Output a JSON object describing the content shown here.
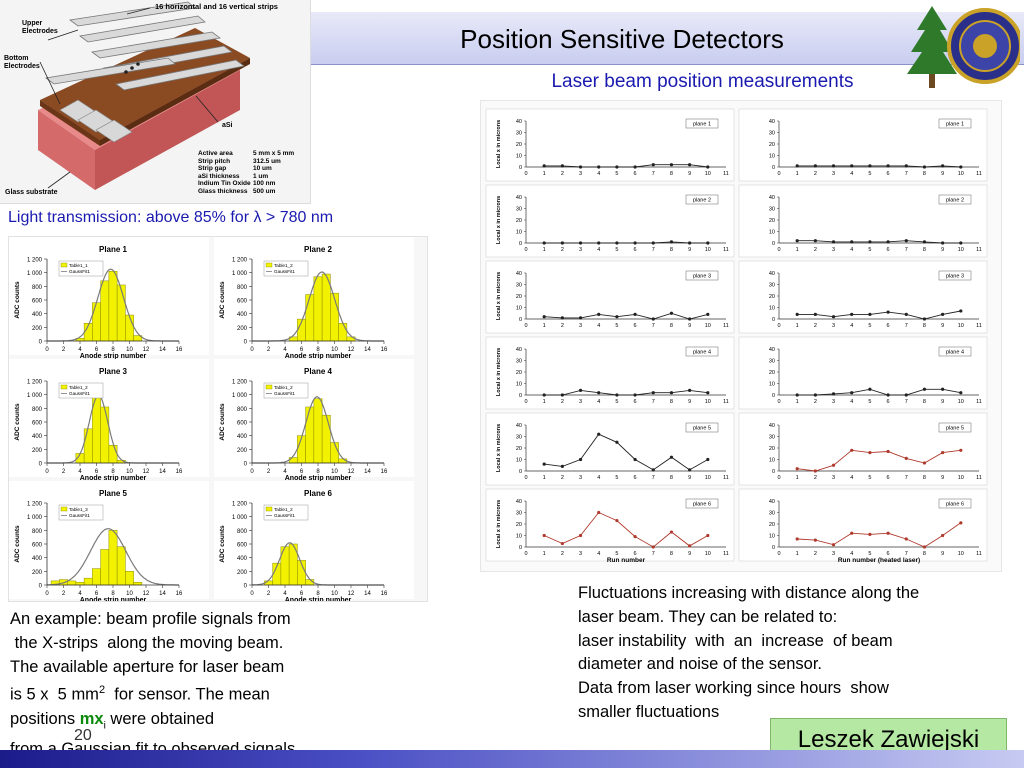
{
  "title": "Position Sensitive Detectors",
  "subtitle": "Laser beam position measurements",
  "light_transmission": {
    "prefix": "Light transmission: above 85% for ",
    "lambda": "λ",
    "suffix": " > 780 nm"
  },
  "detector": {
    "header": "16 horizontal and 16 vertical strips",
    "upper_label": "Upper Electrodes",
    "bottom_label": "Bottom Electrodes",
    "asi_label": "aSi",
    "substrate_label": "Glass substrate",
    "specs": [
      {
        "name": "Active area",
        "value": "5 mm x 5 mm"
      },
      {
        "name": "Strip pitch",
        "value": "312.5 um"
      },
      {
        "name": "Strip gap",
        "value": "10 um"
      },
      {
        "name": "aSi thickness",
        "value": "1 um"
      },
      {
        "name": "Indium Tin Oxide",
        "value": "100 nm"
      },
      {
        "name": "Glass thickness",
        "value": "500 um"
      }
    ]
  },
  "left_text": {
    "line1": "An example: beam profile signals from",
    "line2": " the X-strips  along the moving beam.",
    "line3": "The available aperture for laser beam",
    "line4a": "is 5 x  5 mm",
    "line4sup": "2",
    "line4b": "  for sensor. The mean",
    "line5a": "positions ",
    "line5mx": "mx",
    "line5sub": "i",
    "line5b": " were obtained",
    "line6": "from a Gaussian fit to observed signals"
  },
  "right_text": {
    "line1": "Fluctuations increasing with distance along the",
    "line2": "laser beam. They can be related to:",
    "line3": "laser instability  with  an  increase  of beam",
    "line4": "diameter and noise of the sensor.",
    "line5": "Data from laser working since hours  show",
    "line6": "smaller fluctuations"
  },
  "author": "Leszek Zawiejski",
  "page_number": "20",
  "colors": {
    "title_bar": "#c9cdf0",
    "accent_blue": "#1a1ab0",
    "author_bg": "#b5e8a3",
    "hist_bar": "#f2f200",
    "fit_line": "#7a7a7a",
    "scan_black": "#222222",
    "scan_red": "#b03a2e"
  },
  "chart_data": [
    {
      "type": "bar",
      "title": "Plane 1",
      "xlabel": "Anode strip number",
      "ylabel": "ADC counts",
      "xlim": [
        0,
        16
      ],
      "ylim": [
        0,
        1200
      ],
      "xticks": [
        0,
        2,
        4,
        6,
        8,
        10,
        12,
        14,
        16
      ],
      "yticks": [
        "0",
        "200",
        "400",
        "600",
        "800",
        "1 000",
        "1 200"
      ],
      "legend": [
        "Table1_1",
        "GaussFit1"
      ],
      "categories": [
        4,
        5,
        6,
        7,
        8,
        9,
        10,
        11
      ],
      "values": [
        40,
        260,
        560,
        880,
        1020,
        820,
        380,
        80
      ]
    },
    {
      "type": "bar",
      "title": "Plane 2",
      "xlabel": "Anode strip number",
      "ylabel": "ADC counts",
      "xlim": [
        0,
        16
      ],
      "ylim": [
        0,
        1200
      ],
      "xticks": [
        0,
        2,
        4,
        6,
        8,
        10,
        12,
        14,
        16
      ],
      "yticks": [
        "0",
        "200",
        "400",
        "600",
        "800",
        "1 000",
        "1 200"
      ],
      "legend": [
        "Table1_2",
        "GaussFit1"
      ],
      "categories": [
        5,
        6,
        7,
        8,
        9,
        10,
        11,
        12
      ],
      "values": [
        60,
        320,
        680,
        940,
        980,
        700,
        260,
        60
      ]
    },
    {
      "type": "bar",
      "title": "Plane 3",
      "xlabel": "Anode strip number",
      "ylabel": "ADC counts",
      "xlim": [
        0,
        16
      ],
      "ylim": [
        0,
        1200
      ],
      "xticks": [
        0,
        2,
        4,
        6,
        8,
        10,
        12,
        14,
        16
      ],
      "yticks": [
        "0",
        "200",
        "400",
        "600",
        "800",
        "1 000",
        "1 200"
      ],
      "legend": [
        "Table1_2",
        "GaussFit1"
      ],
      "categories": [
        4,
        5,
        6,
        7,
        8,
        9
      ],
      "values": [
        140,
        500,
        960,
        820,
        260,
        40
      ]
    },
    {
      "type": "bar",
      "title": "Plane 4",
      "xlabel": "Anode strip number",
      "ylabel": "ADC counts",
      "xlim": [
        0,
        16
      ],
      "ylim": [
        0,
        1200
      ],
      "xticks": [
        0,
        2,
        4,
        6,
        8,
        10,
        12,
        14,
        16
      ],
      "yticks": [
        "0",
        "200",
        "400",
        "600",
        "800",
        "1 000",
        "1 200"
      ],
      "legend": [
        "Table1_2",
        "GaussFit1"
      ],
      "categories": [
        5,
        6,
        7,
        8,
        9,
        10,
        11
      ],
      "values": [
        80,
        400,
        820,
        940,
        700,
        300,
        60
      ]
    },
    {
      "type": "bar",
      "title": "Plane 5",
      "xlabel": "Anode strip number",
      "ylabel": "ADC counts",
      "xlim": [
        0,
        16
      ],
      "ylim": [
        0,
        1200
      ],
      "xticks": [
        0,
        2,
        4,
        6,
        8,
        10,
        12,
        14,
        16
      ],
      "yticks": [
        "0",
        "200",
        "400",
        "600",
        "800",
        "1 000",
        "1 200"
      ],
      "legend": [
        "Table1_3",
        "GaussFit1"
      ],
      "categories": [
        1,
        2,
        3,
        4,
        5,
        6,
        7,
        8,
        9,
        10,
        11
      ],
      "values": [
        60,
        80,
        60,
        40,
        100,
        240,
        520,
        800,
        560,
        200,
        40
      ]
    },
    {
      "type": "bar",
      "title": "Plane 6",
      "xlabel": "Anode strip number",
      "ylabel": "ADC counts",
      "xlim": [
        0,
        16
      ],
      "ylim": [
        0,
        1200
      ],
      "xticks": [
        0,
        2,
        4,
        6,
        8,
        10,
        12,
        14,
        16
      ],
      "yticks": [
        "0",
        "200",
        "400",
        "600",
        "800",
        "1 000",
        "1 200"
      ],
      "legend": [
        "Table1_2",
        "GaussFit1"
      ],
      "categories": [
        2,
        3,
        4,
        5,
        6,
        7
      ],
      "values": [
        60,
        320,
        560,
        600,
        360,
        80
      ]
    },
    {
      "type": "line",
      "legend": [
        "plane 1"
      ],
      "ylabel": "Local x in microns",
      "xlim": [
        0,
        11
      ],
      "ylim": [
        0,
        40
      ],
      "yticks": [
        0,
        10,
        20,
        30,
        40
      ],
      "xticks": [
        0,
        1,
        2,
        3,
        4,
        5,
        6,
        7,
        8,
        9,
        10,
        11
      ],
      "color": "black",
      "x": [
        1,
        2,
        3,
        4,
        5,
        6,
        7,
        8,
        9,
        10
      ],
      "y": [
        1,
        1,
        0,
        0,
        0,
        0,
        2,
        2,
        2,
        0
      ]
    },
    {
      "type": "line",
      "legend": [
        "plane 1"
      ],
      "xlim": [
        0,
        11
      ],
      "ylim": [
        0,
        40
      ],
      "yticks": [
        0,
        10,
        20,
        30,
        40
      ],
      "xticks": [
        0,
        1,
        2,
        3,
        4,
        5,
        6,
        7,
        8,
        9,
        10,
        11
      ],
      "color": "black",
      "x": [
        1,
        2,
        3,
        4,
        5,
        6,
        7,
        8,
        9,
        10
      ],
      "y": [
        1,
        1,
        1,
        1,
        1,
        1,
        1,
        0,
        1,
        0
      ]
    },
    {
      "type": "line",
      "legend": [
        "plane 2"
      ],
      "ylabel": "Local x in microns",
      "xlim": [
        0,
        11
      ],
      "ylim": [
        0,
        40
      ],
      "yticks": [
        0,
        10,
        20,
        30,
        40
      ],
      "xticks": [
        0,
        1,
        2,
        3,
        4,
        5,
        6,
        7,
        8,
        9,
        10,
        11
      ],
      "color": "black",
      "x": [
        1,
        2,
        3,
        4,
        5,
        6,
        7,
        8,
        9,
        10
      ],
      "y": [
        0,
        0,
        0,
        0,
        0,
        0,
        0,
        1,
        0,
        0
      ]
    },
    {
      "type": "line",
      "legend": [
        "plane 2"
      ],
      "xlim": [
        0,
        11
      ],
      "ylim": [
        0,
        40
      ],
      "yticks": [
        0,
        10,
        20,
        30,
        40
      ],
      "xticks": [
        0,
        1,
        2,
        3,
        4,
        5,
        6,
        7,
        8,
        9,
        10,
        11
      ],
      "color": "black",
      "x": [
        1,
        2,
        3,
        4,
        5,
        6,
        7,
        8,
        9,
        10
      ],
      "y": [
        2,
        2,
        1,
        1,
        1,
        1,
        2,
        1,
        0,
        0
      ]
    },
    {
      "type": "line",
      "legend": [
        "plane 3"
      ],
      "ylabel": "Local x in microns",
      "xlim": [
        0,
        11
      ],
      "ylim": [
        0,
        40
      ],
      "yticks": [
        0,
        10,
        20,
        30,
        40
      ],
      "xticks": [
        0,
        1,
        2,
        3,
        4,
        5,
        6,
        7,
        8,
        9,
        10,
        11
      ],
      "color": "black",
      "x": [
        1,
        2,
        3,
        4,
        5,
        6,
        7,
        8,
        9,
        10
      ],
      "y": [
        2,
        1,
        1,
        4,
        2,
        4,
        0,
        5,
        0,
        4
      ]
    },
    {
      "type": "line",
      "legend": [
        "plane 3"
      ],
      "xlim": [
        0,
        11
      ],
      "ylim": [
        0,
        40
      ],
      "yticks": [
        0,
        10,
        20,
        30,
        40
      ],
      "xticks": [
        0,
        1,
        2,
        3,
        4,
        5,
        6,
        7,
        8,
        9,
        10,
        11
      ],
      "color": "black",
      "x": [
        1,
        2,
        3,
        4,
        5,
        6,
        7,
        8,
        9,
        10
      ],
      "y": [
        4,
        4,
        2,
        4,
        4,
        6,
        4,
        0,
        4,
        7
      ]
    },
    {
      "type": "line",
      "legend": [
        "plane 4"
      ],
      "ylabel": "Local x in microns",
      "xlim": [
        0,
        11
      ],
      "ylim": [
        0,
        40
      ],
      "yticks": [
        0,
        10,
        20,
        30,
        40
      ],
      "xticks": [
        0,
        1,
        2,
        3,
        4,
        5,
        6,
        7,
        8,
        9,
        10,
        11
      ],
      "color": "black",
      "x": [
        1,
        2,
        3,
        4,
        5,
        6,
        7,
        8,
        9,
        10
      ],
      "y": [
        0,
        0,
        4,
        2,
        0,
        0,
        2,
        2,
        4,
        2
      ]
    },
    {
      "type": "line",
      "legend": [
        "plane 4"
      ],
      "xlim": [
        0,
        11
      ],
      "ylim": [
        0,
        40
      ],
      "yticks": [
        0,
        10,
        20,
        30,
        40
      ],
      "xticks": [
        0,
        1,
        2,
        3,
        4,
        5,
        6,
        7,
        8,
        9,
        10,
        11
      ],
      "color": "black",
      "x": [
        1,
        2,
        3,
        4,
        5,
        6,
        7,
        8,
        9,
        10
      ],
      "y": [
        0,
        0,
        1,
        2,
        5,
        0,
        0,
        5,
        5,
        2
      ]
    },
    {
      "type": "line",
      "legend": [
        "plane 5"
      ],
      "ylabel": "Local x in microns",
      "xlim": [
        0,
        11
      ],
      "ylim": [
        0,
        40
      ],
      "yticks": [
        0,
        10,
        20,
        30,
        40
      ],
      "xticks": [
        0,
        1,
        2,
        3,
        4,
        5,
        6,
        7,
        8,
        9,
        10,
        11
      ],
      "color": "black",
      "x": [
        1,
        2,
        3,
        4,
        5,
        6,
        7,
        8,
        9,
        10
      ],
      "y": [
        6,
        4,
        10,
        32,
        25,
        10,
        1,
        12,
        1,
        10
      ]
    },
    {
      "type": "line",
      "legend": [
        "plane 5"
      ],
      "xlim": [
        0,
        11
      ],
      "ylim": [
        0,
        40
      ],
      "yticks": [
        0,
        10,
        20,
        30,
        40
      ],
      "xticks": [
        0,
        1,
        2,
        3,
        4,
        5,
        6,
        7,
        8,
        9,
        10,
        11
      ],
      "color": "red",
      "x": [
        1,
        2,
        3,
        4,
        5,
        6,
        7,
        8,
        9,
        10
      ],
      "y": [
        2,
        0,
        5,
        18,
        16,
        17,
        11,
        7,
        16,
        18
      ]
    },
    {
      "type": "line",
      "legend": [
        "plane 6"
      ],
      "ylabel": "Local x in microns",
      "xlabel": "Run number",
      "xlim": [
        0,
        11
      ],
      "ylim": [
        0,
        40
      ],
      "yticks": [
        0,
        10,
        20,
        30,
        40
      ],
      "xticks": [
        0,
        1,
        2,
        3,
        4,
        5,
        6,
        7,
        8,
        9,
        10,
        11
      ],
      "color": "red",
      "x": [
        1,
        2,
        3,
        4,
        5,
        6,
        7,
        8,
        9,
        10
      ],
      "y": [
        10,
        3,
        10,
        30,
        23,
        9,
        0,
        13,
        1,
        10
      ]
    },
    {
      "type": "line",
      "legend": [
        "plane 6"
      ],
      "xlabel": "Run number (heated laser)",
      "xlim": [
        0,
        11
      ],
      "ylim": [
        0,
        40
      ],
      "yticks": [
        0,
        10,
        20,
        30,
        40
      ],
      "xticks": [
        0,
        1,
        2,
        3,
        4,
        5,
        6,
        7,
        8,
        9,
        10,
        11
      ],
      "color": "red",
      "x": [
        1,
        2,
        3,
        4,
        5,
        6,
        7,
        8,
        9,
        10
      ],
      "y": [
        7,
        6,
        2,
        12,
        11,
        12,
        7,
        0,
        10,
        21
      ]
    }
  ]
}
